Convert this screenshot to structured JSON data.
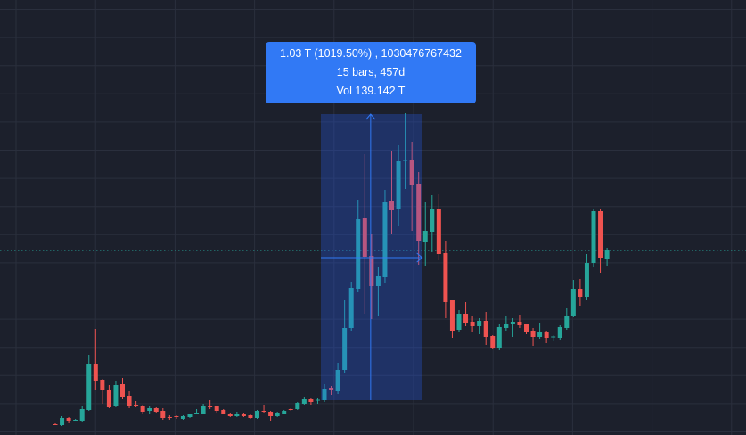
{
  "chart_data": {
    "type": "candlestick",
    "title": "",
    "xlabel": "",
    "ylabel": "",
    "ylim": [
      0,
      488
    ],
    "grid": true,
    "colors": {
      "up": "#26a69a",
      "down": "#ef5350",
      "background": "#1c202c",
      "grid": "#2a2f3d",
      "measure": "#2962ff",
      "price_line": "#26a69a"
    },
    "current_price": 207,
    "ohlc": [
      [
        12,
        13,
        11,
        11
      ],
      [
        11,
        21,
        10,
        19
      ],
      [
        19,
        20,
        14,
        16
      ],
      [
        17,
        18,
        16,
        17
      ],
      [
        16,
        32,
        15,
        29
      ],
      [
        28,
        90,
        27,
        80
      ],
      [
        80,
        119,
        50,
        61
      ],
      [
        62,
        63,
        35,
        51
      ],
      [
        51,
        56,
        30,
        31
      ],
      [
        32,
        61,
        31,
        56
      ],
      [
        57,
        64,
        40,
        43
      ],
      [
        44,
        49,
        30,
        32
      ],
      [
        34,
        38,
        31,
        33
      ],
      [
        33,
        34,
        23,
        26
      ],
      [
        27,
        33,
        24,
        30
      ],
      [
        30,
        31,
        25,
        26
      ],
      [
        27,
        30,
        17,
        19
      ],
      [
        20,
        22,
        17,
        19.5
      ],
      [
        21,
        22,
        18,
        20
      ],
      [
        18,
        22,
        17,
        21
      ],
      [
        20,
        24,
        19,
        23
      ],
      [
        24,
        29,
        23,
        25
      ],
      [
        24,
        35,
        23,
        33
      ],
      [
        33,
        39,
        29,
        31
      ],
      [
        32,
        33,
        25,
        27
      ],
      [
        28,
        29,
        23,
        24
      ],
      [
        24,
        25,
        20,
        21
      ],
      [
        21,
        26,
        20,
        24
      ],
      [
        24,
        25,
        20,
        21
      ],
      [
        22,
        23,
        18,
        19
      ],
      [
        19,
        28,
        18,
        27
      ],
      [
        27,
        34,
        25,
        26
      ],
      [
        26,
        27,
        16,
        21
      ],
      [
        21,
        26,
        20,
        25
      ],
      [
        24,
        28,
        23,
        27
      ],
      [
        29,
        30,
        27,
        28
      ],
      [
        29,
        37,
        28,
        36
      ],
      [
        35,
        43,
        34,
        40
      ],
      [
        40,
        41,
        34,
        37
      ],
      [
        39,
        42,
        35,
        39.5
      ],
      [
        39,
        57,
        37,
        52
      ],
      [
        53,
        55,
        45,
        50
      ],
      [
        49,
        81,
        46,
        73
      ],
      [
        73,
        152,
        70,
        120
      ],
      [
        120,
        172,
        117,
        165
      ],
      [
        164,
        264,
        160,
        242
      ],
      [
        243,
        315,
        136,
        200
      ],
      [
        201,
        225,
        130,
        167
      ],
      [
        167,
        188,
        134,
        178
      ],
      [
        177,
        275,
        170,
        261
      ],
      [
        262,
        319,
        225,
        252
      ],
      [
        254,
        325,
        235,
        307
      ],
      [
        308,
        361,
        276,
        308.5
      ],
      [
        308,
        329,
        229,
        280
      ],
      [
        282,
        295,
        191,
        218
      ],
      [
        217,
        261,
        190,
        229
      ],
      [
        228,
        269,
        205,
        254
      ],
      [
        254,
        270,
        196,
        203
      ],
      [
        204,
        218,
        131,
        149
      ],
      [
        151,
        152,
        109,
        117
      ],
      [
        118,
        140,
        115,
        136
      ],
      [
        136,
        149,
        122,
        126
      ],
      [
        127,
        133,
        116,
        122
      ],
      [
        122,
        131,
        113,
        128
      ],
      [
        128,
        138,
        101,
        110
      ],
      [
        111,
        112,
        96,
        98
      ],
      [
        98,
        125,
        95,
        121
      ],
      [
        120,
        133,
        117,
        124
      ],
      [
        124,
        131,
        110,
        127
      ],
      [
        127,
        135,
        120,
        123
      ],
      [
        124,
        125,
        113,
        115
      ],
      [
        117,
        120,
        100,
        110
      ],
      [
        110,
        126,
        108,
        116
      ],
      [
        116,
        117,
        103,
        109
      ],
      [
        110,
        112,
        105,
        110.5
      ],
      [
        109,
        123,
        107,
        121
      ],
      [
        120,
        143,
        118,
        134
      ],
      [
        134,
        174,
        132,
        164
      ],
      [
        164,
        175,
        145,
        155
      ],
      [
        155,
        203,
        152,
        193
      ],
      [
        193,
        254,
        189,
        251
      ],
      [
        251,
        253,
        182,
        199
      ],
      [
        198,
        210,
        190,
        208
      ]
    ],
    "measure": {
      "bars": 15,
      "change": "1.03 T",
      "change_percent": "1019.50%",
      "change_raw": "1030476767432",
      "duration": "457d",
      "volume": "139.142 T"
    }
  },
  "tooltip": {
    "line1": "1.03 T (1019.50%) , 1030476767432",
    "line2": "15 bars, 457d",
    "line3": "Vol 139.142 T"
  }
}
